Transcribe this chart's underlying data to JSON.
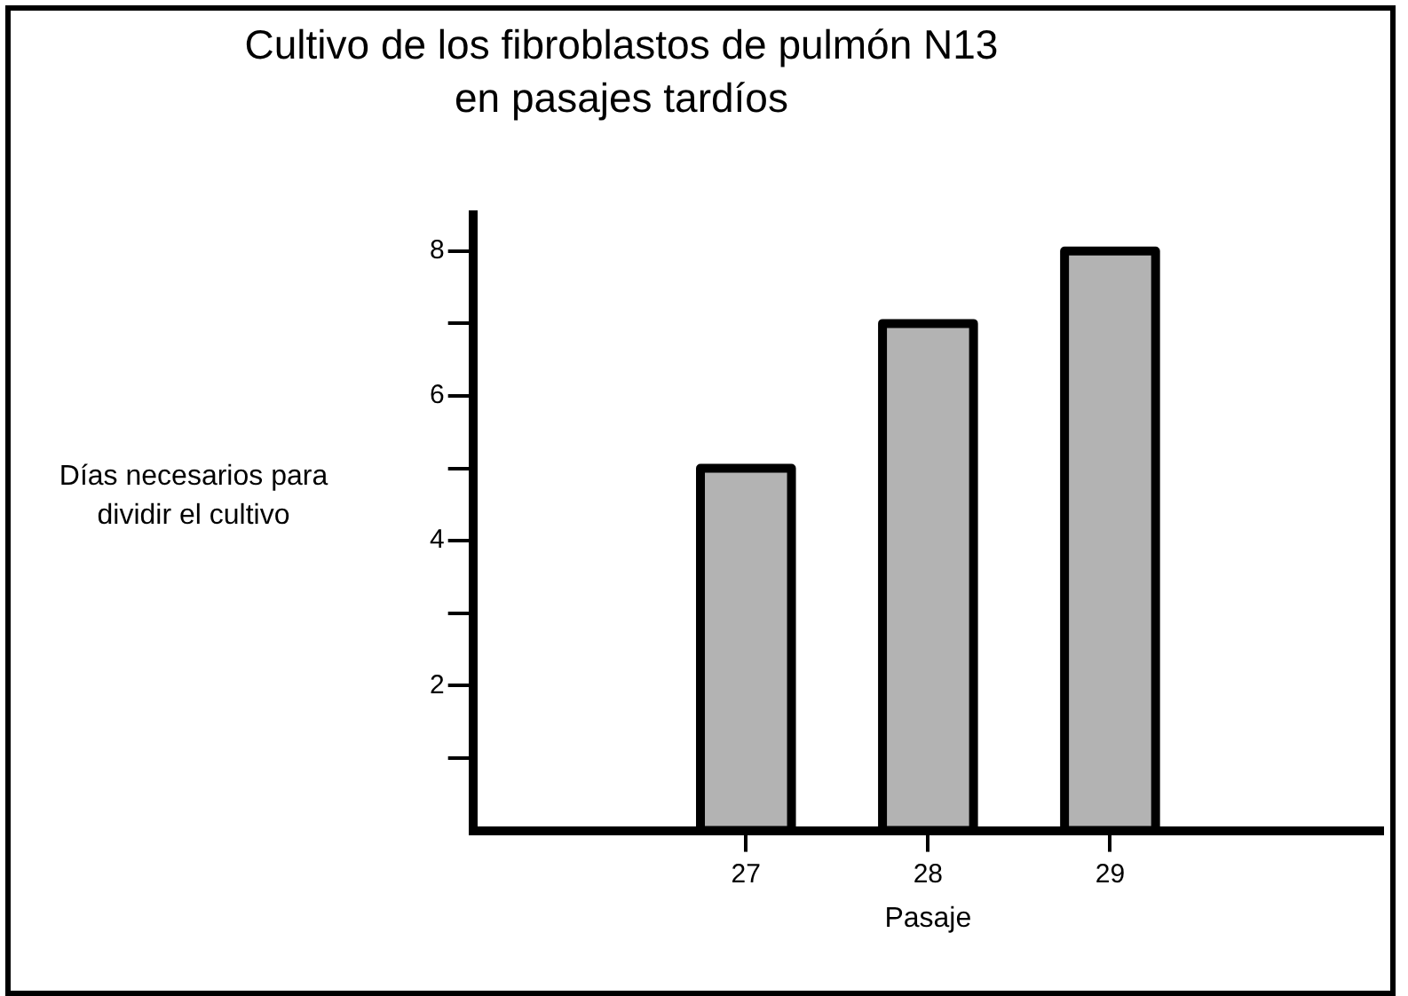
{
  "chart_data": {
    "type": "bar",
    "title": "Cultivo de los fibroblastos de pulmón N13 en pasajes tardíos",
    "xlabel": "Pasaje",
    "ylabel": "Días necesarios para dividir el cultivo",
    "categories": [
      null,
      "27",
      "28",
      "29",
      null
    ],
    "values": [
      null,
      5,
      7,
      8,
      null
    ],
    "color": "#b3b3b3",
    "ylim": [
      0,
      8.5
    ],
    "yticks": [
      {
        "value": 1,
        "label": null
      },
      2,
      {
        "value": 3,
        "label": null
      },
      4,
      {
        "value": 5,
        "label": null
      },
      6,
      {
        "value": 7,
        "label": null
      },
      8
    ],
    "grid": false,
    "legend": false
  }
}
